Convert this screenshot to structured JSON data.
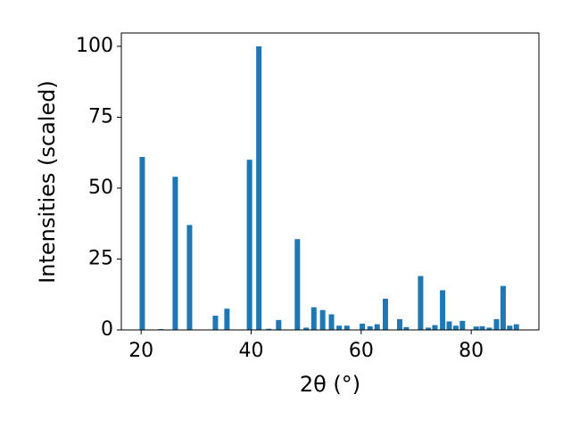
{
  "chart_data": {
    "type": "bar",
    "xlabel": "2θ (°)",
    "ylabel": "Intensities (scaled)",
    "x": [
      20.2,
      23.6,
      26.2,
      28.8,
      33.5,
      35.6,
      39.7,
      41.4,
      43.2,
      45.0,
      48.4,
      50.0,
      51.4,
      53.0,
      54.6,
      56.0,
      57.4,
      60.2,
      61.6,
      62.9,
      64.4,
      67.0,
      68.2,
      70.8,
      72.2,
      73.4,
      74.8,
      76.0,
      77.2,
      78.4,
      80.9,
      82.0,
      83.3,
      84.6,
      85.8,
      87.0,
      88.2
    ],
    "values": [
      61,
      0.3,
      54,
      37,
      5,
      7.5,
      60,
      100,
      0.4,
      3.5,
      32,
      0.8,
      8,
      7,
      5.5,
      1.5,
      1.5,
      2.2,
      1.3,
      2,
      11,
      3.8,
      1,
      19,
      0.8,
      1.7,
      14,
      3,
      1.5,
      3.2,
      1.2,
      1.3,
      0.8,
      3.8,
      15.5,
      1.5,
      2
    ],
    "color": "#1f77b4",
    "xlim": [
      16.4,
      92.3
    ],
    "ylim": [
      0,
      104.7
    ],
    "xticks": [
      20,
      40,
      60,
      80
    ],
    "yticks": [
      0,
      25,
      50,
      75,
      100
    ],
    "grid": false
  }
}
